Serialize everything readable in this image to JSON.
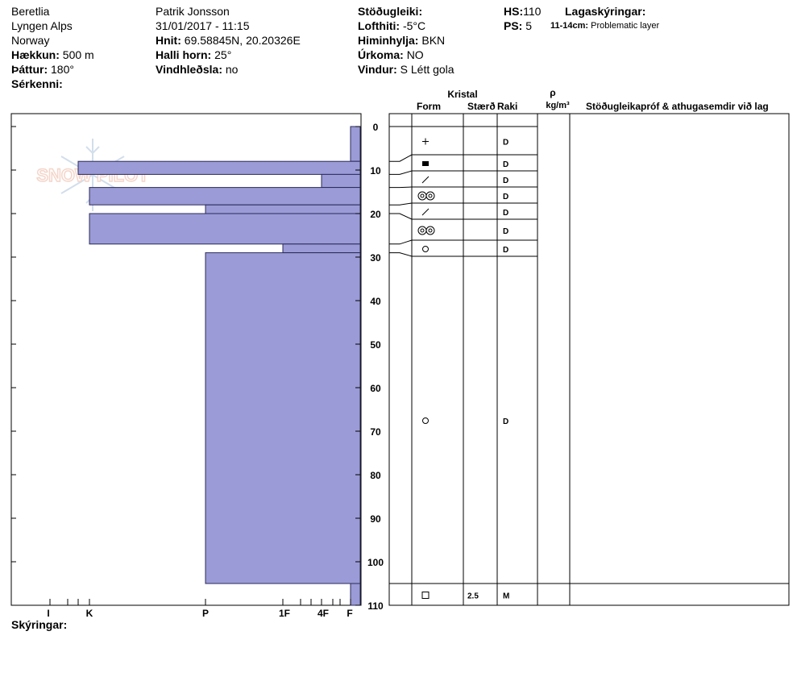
{
  "header": {
    "col1": {
      "location": "Beretlia",
      "range": "Lyngen Alps",
      "country": "Norway",
      "elevation_label": "Hækkun:",
      "elevation_value": "500 m",
      "aspect_label": "Þáttur:",
      "aspect_value": "180°",
      "features_label": "Sérkenni:"
    },
    "col2": {
      "observer": "Patrik Jonsson",
      "datetime": "31/01/2017 - 11:15",
      "coords_label": "Hnit:",
      "coords_value": "69.58845N, 20.20326E",
      "slope_label": "Halli horn:",
      "slope_value": "25°",
      "wind_loading_label": "Vindhleðsla:",
      "wind_loading_value": "no"
    },
    "col3": {
      "stability_label": "Stöðugleiki:",
      "air_temp_label": "Lofthiti:",
      "air_temp_value": "-5°C",
      "sky_label": "Himinhylja:",
      "sky_value": "BKN",
      "precip_label": "Úrkoma:",
      "precip_value": "NO",
      "wind_label": "Vindur:",
      "wind_value": "S Létt gola"
    },
    "col4": {
      "hs_label": "HS:",
      "hs_value": "110",
      "ps_label": "PS:",
      "ps_value": "5",
      "legend_title": "Lagaskýringar:",
      "legend_range": "11-14cm:",
      "legend_text": "Problematic layer"
    }
  },
  "table_headers": {
    "crystal": "Kristal",
    "form": "Form",
    "size": "Stærð",
    "moisture": "Raki",
    "rho": "ρ",
    "density_unit": "kg/m³",
    "tests": "Stöðugleikapróf & athugasemdir við lag"
  },
  "footer": {
    "notes_label": "Skýringar:"
  },
  "watermark": "SNOW PILOT",
  "colors": {
    "layer_fill": "#9b9bd7",
    "layer_stroke": "#2b2b5a"
  },
  "chart_data": {
    "type": "bar",
    "orientation": "horizontal",
    "description_note": "Snow profile hand-hardness per layer; depth from surface in cm",
    "y_axis": {
      "range": [
        0,
        110
      ],
      "ticks": [
        0,
        10,
        20,
        30,
        40,
        50,
        60,
        70,
        80,
        90,
        100,
        110
      ]
    },
    "x_axis": {
      "ticks": [
        "I",
        "K",
        "P",
        "1F",
        "4F",
        "F"
      ]
    },
    "layers": [
      {
        "top": 0,
        "bottom": 8,
        "hardness": "F",
        "form": "plus",
        "size": "",
        "moisture": "D"
      },
      {
        "top": 8,
        "bottom": 11,
        "hardness": "K+",
        "form": "square",
        "size": "",
        "moisture": "D"
      },
      {
        "top": 11,
        "bottom": 14,
        "hardness": "4F",
        "form": "slash",
        "size": "",
        "moisture": "D"
      },
      {
        "top": 14,
        "bottom": 18,
        "hardness": "K",
        "form": "double-o",
        "size": "",
        "moisture": "D"
      },
      {
        "top": 18,
        "bottom": 20,
        "hardness": "P",
        "form": "slash",
        "size": "",
        "moisture": "D"
      },
      {
        "top": 20,
        "bottom": 27,
        "hardness": "K",
        "form": "double-o",
        "size": "",
        "moisture": "D"
      },
      {
        "top": 27,
        "bottom": 29,
        "hardness": "1F",
        "form": "circle",
        "size": "",
        "moisture": "D"
      },
      {
        "top": 29,
        "bottom": 105,
        "hardness": "P",
        "form": "circle",
        "size": "",
        "moisture": "D"
      },
      {
        "top": 105,
        "bottom": 110,
        "hardness": "F",
        "form": "box",
        "size": "2.5",
        "moisture": "M"
      }
    ]
  }
}
